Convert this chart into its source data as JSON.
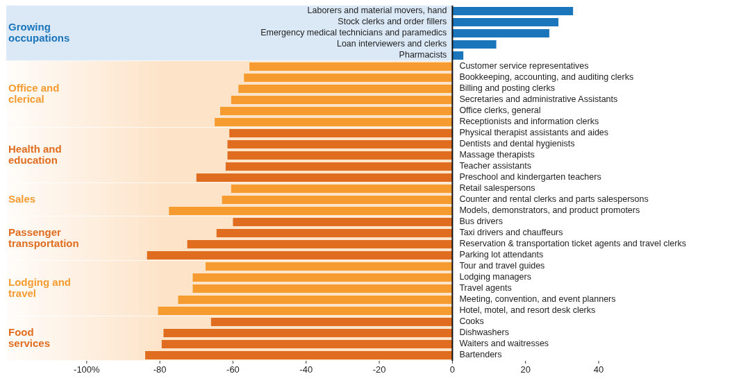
{
  "chart_data": {
    "type": "bar",
    "orientation": "horizontal",
    "categories": [
      "Laborers and material movers, hand",
      "Stock clerks and order fillers",
      "Emergency medical technicians and paramedics",
      "Loan interviewers and clerks",
      "Pharmacists",
      "Customer service representatives",
      "Bookkeeping, accounting, and auditing clerks",
      "Billing and posting clerks",
      "Secretaries and administrative Assistants",
      "Office clerks, general",
      "Receptionists and information clerks",
      "Physical therapist assistants and aides",
      "Dentists and dental hygienists",
      "Massage therapists",
      "Teacher assistants",
      "Preschool and kindergarten teachers",
      "Retail salespersons",
      "Counter and rental clerks and parts salespersons",
      "Models, demonstrators, and product promoters",
      "Bus drivers",
      "Taxi drivers and chauffeurs",
      "Reservation & transportation ticket agents and travel clerks",
      "Parking lot attendants",
      "Tour and travel guides",
      "Lodging managers",
      "Travel agents",
      "Meeting, convention, and event planners",
      "Hotel, motel, and resort desk clerks",
      "Cooks",
      "Dishwashers",
      "Waiters and waitresses",
      "Bartenders"
    ],
    "values": [
      33,
      29,
      26.5,
      12,
      3,
      -55.5,
      -57,
      -58.5,
      -60.5,
      -63.5,
      -65,
      -61,
      -61.5,
      -61.5,
      -62,
      -70,
      -60.5,
      -63,
      -77.5,
      -60,
      -64.5,
      -72.5,
      -83.5,
      -67.5,
      -71,
      -71,
      -75,
      -80.5,
      -66,
      -79,
      -79.5,
      -84
    ],
    "colors": [
      "#1b75bb",
      "#1b75bb",
      "#1b75bb",
      "#1b75bb",
      "#1b75bb",
      "#f59b2f",
      "#f59b2f",
      "#f59b2f",
      "#f59b2f",
      "#f59b2f",
      "#f59b2f",
      "#e06d1f",
      "#e06d1f",
      "#e06d1f",
      "#e06d1f",
      "#e06d1f",
      "#f59b2f",
      "#f59b2f",
      "#f59b2f",
      "#e06d1f",
      "#e06d1f",
      "#e06d1f",
      "#e06d1f",
      "#f59b2f",
      "#f59b2f",
      "#f59b2f",
      "#f59b2f",
      "#f59b2f",
      "#e06d1f",
      "#e06d1f",
      "#e06d1f",
      "#e06d1f"
    ],
    "xlim": [
      -122,
      40
    ],
    "xticks": [
      {
        "value": -100,
        "label": "-100%"
      },
      -80,
      -60,
      -40,
      -20,
      0,
      20,
      40
    ],
    "bands": [
      {
        "axis": "y",
        "from": "Laborers and material movers, hand",
        "to": "Pharmacists",
        "label": "Growing occupations",
        "color": "#dbe8f6"
      },
      {
        "axis": "y",
        "from": "Customer service representatives",
        "to": "Receptionists and information clerks",
        "label": "Office and clerical",
        "color": "#fde3c8"
      },
      {
        "axis": "y",
        "from": "Physical therapist assistants and aides",
        "to": "Preschool and kindergarten teachers",
        "label": "Health and education",
        "color": "#fde3c8"
      },
      {
        "axis": "y",
        "from": "Retail salespersons",
        "to": "Models, demonstrators, and product promoters",
        "label": "Sales",
        "color": "#fde3c8"
      },
      {
        "axis": "y",
        "from": "Bus drivers",
        "to": "Parking lot attendants",
        "label": "Passenger transportation",
        "color": "#fde3c8"
      },
      {
        "axis": "y",
        "from": "Tour and travel guides",
        "to": "Hotel, motel, and resort desk clerks",
        "label": "Lodging and travel",
        "color": "#fde3c8"
      },
      {
        "axis": "y",
        "from": "Cooks",
        "to": "Bartenders",
        "label": "Food services",
        "color": "#fde3c8"
      }
    ],
    "grid": false
  }
}
